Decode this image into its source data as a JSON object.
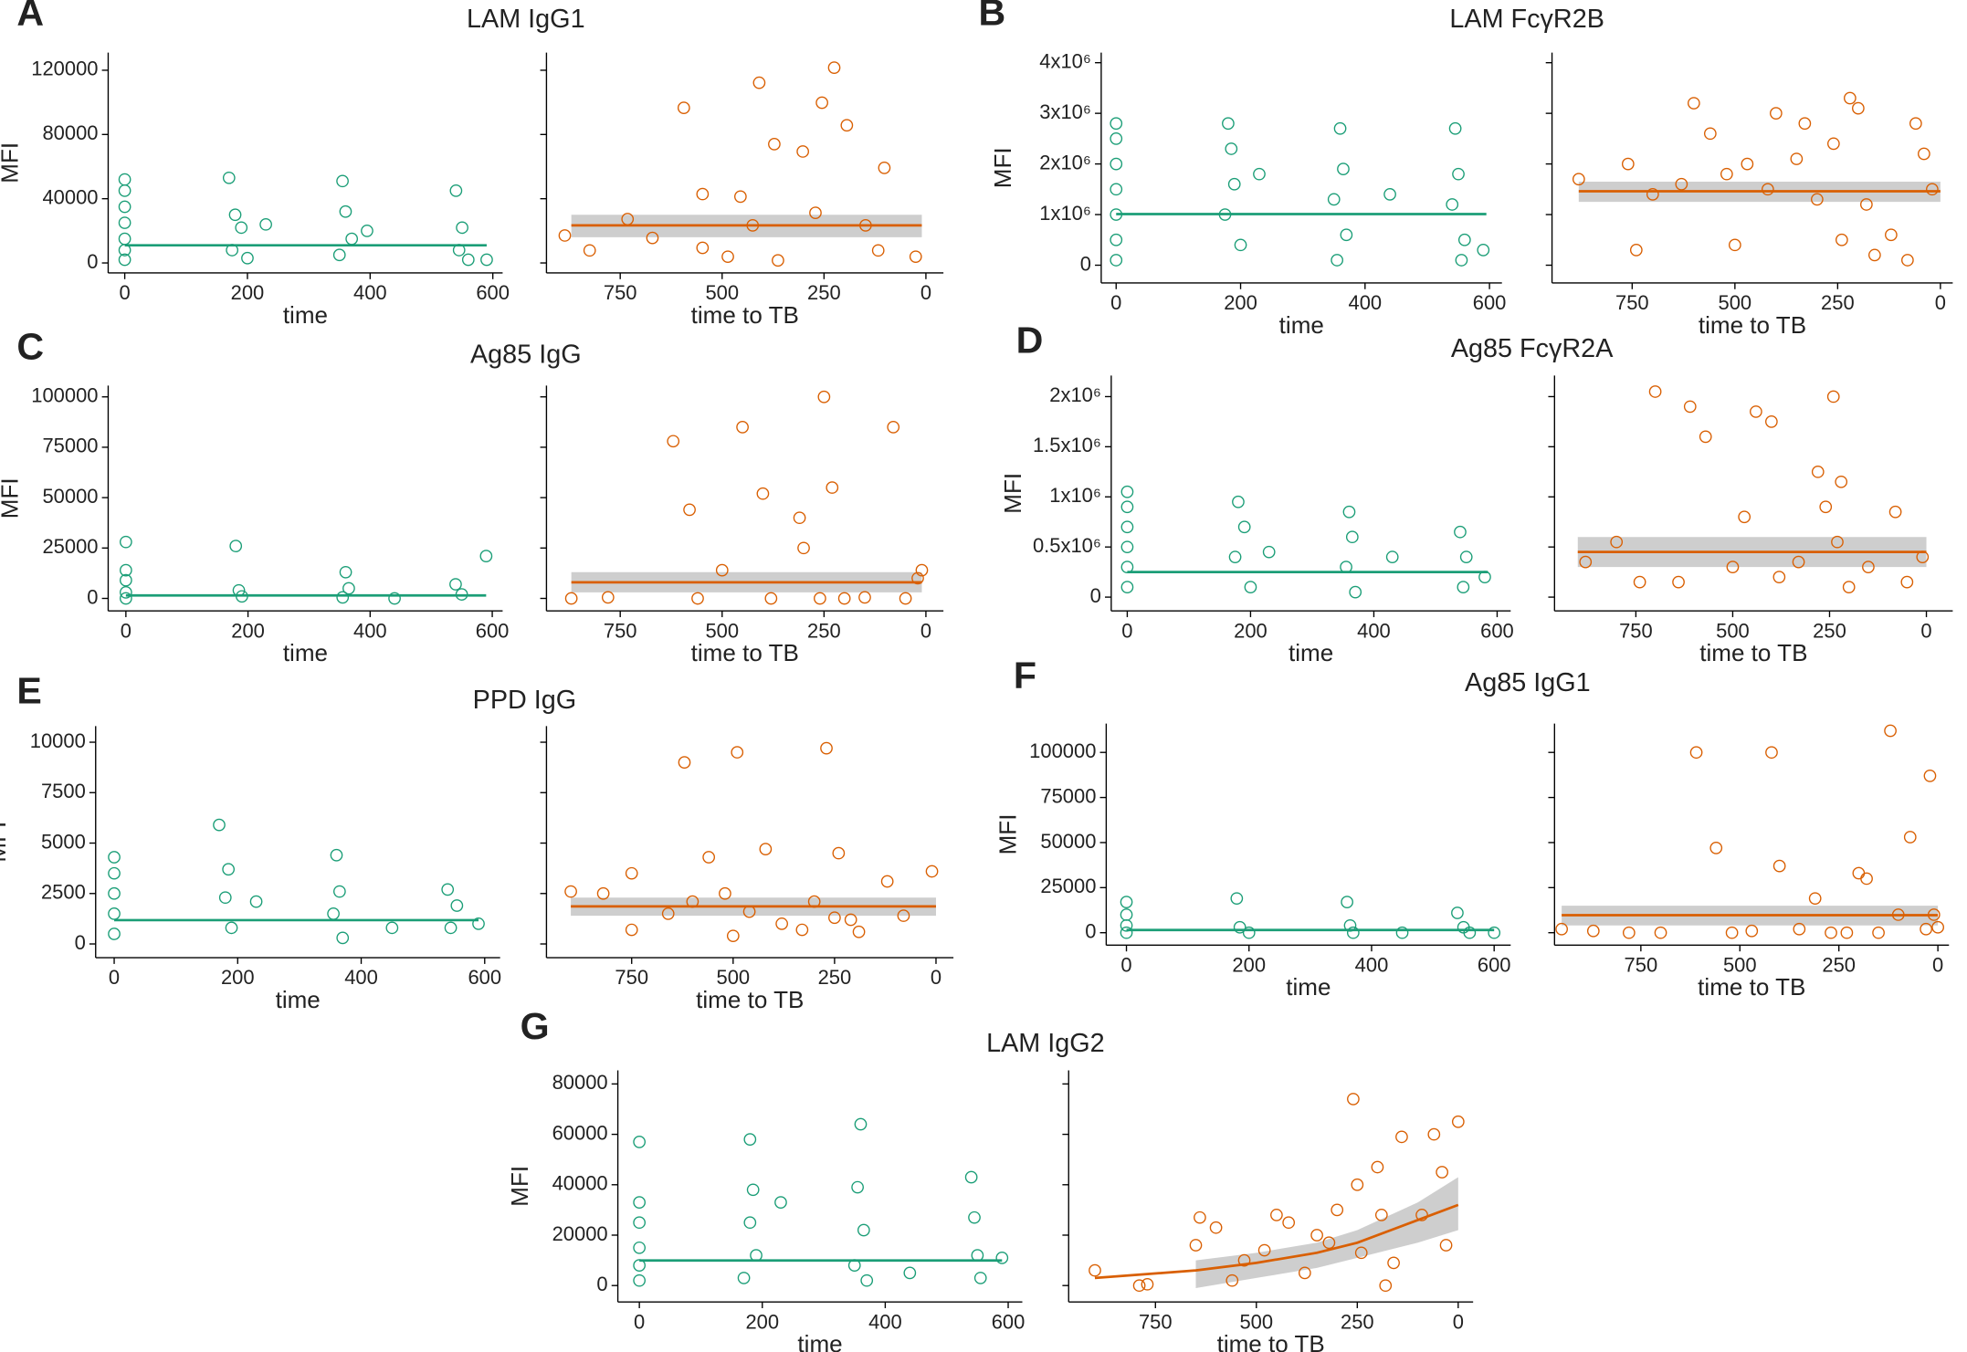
{
  "chart_data": [
    {
      "type": "scatter",
      "panel": "A",
      "title": "LAM IgG1",
      "y_label": "MFI",
      "x_label": "time",
      "color": "#1b9e77",
      "xlim": [
        -27,
        616
      ],
      "xticks": [
        0,
        200,
        400,
        600
      ],
      "ylim": [
        -6200,
        131000
      ],
      "yticks": [
        0,
        40000,
        80000,
        120000
      ],
      "x": [
        0,
        0,
        0,
        0,
        0,
        0,
        0,
        170,
        180,
        190,
        175,
        200,
        230,
        355,
        360,
        370,
        350,
        395,
        540,
        550,
        545,
        560,
        590
      ],
      "y": [
        52000,
        45000,
        35000,
        25000,
        15000,
        8000,
        2000,
        53000,
        30000,
        22000,
        8000,
        3000,
        24000,
        51000,
        32000,
        15000,
        5000,
        20000,
        45000,
        22000,
        8000,
        2000,
        2000
      ],
      "fit": {
        "x": [
          0,
          590
        ],
        "y": [
          11000,
          11000
        ]
      }
    },
    {
      "type": "scatter",
      "x_label": "time to TB",
      "color": "#d95f02",
      "xlim": [
        931,
        -43
      ],
      "xticks": [
        750,
        500,
        250,
        0
      ],
      "ylim": [
        -6200,
        131000
      ],
      "x": [
        594,
        409,
        255,
        225,
        194,
        372,
        548,
        455,
        302,
        102,
        886,
        732,
        671,
        425,
        271,
        117,
        25,
        825,
        486,
        148,
        363,
        548
      ],
      "y": [
        96600,
        112200,
        99800,
        121600,
        85700,
        74000,
        42900,
        41300,
        69400,
        59200,
        17100,
        27300,
        15600,
        23400,
        31200,
        7800,
        3900,
        7800,
        3900,
        23400,
        1600,
        9400
      ],
      "fit": {
        "x": [
          870,
          10
        ],
        "y": [
          23400,
          23400
        ]
      },
      "band": {
        "x": [
          870,
          10
        ],
        "lower": [
          16000,
          16000
        ],
        "upper": [
          30000,
          30000
        ]
      }
    },
    {
      "type": "scatter",
      "panel": "B",
      "title": "LAM FcγR2B",
      "y_label": "MFI",
      "x_label": "time",
      "color": "#1b9e77",
      "xlim": [
        -24,
        620
      ],
      "xticks": [
        0,
        200,
        400,
        600
      ],
      "ylim": [
        -350000,
        4200000
      ],
      "yticks": [
        0,
        {
          "value": 1000000,
          "label": "1x10⁶"
        },
        {
          "value": 2000000,
          "label": "2x10⁶"
        },
        {
          "value": 3000000,
          "label": "3x10⁶"
        },
        {
          "value": 4000000,
          "label": "4x10⁶"
        }
      ],
      "x": [
        0,
        0,
        0,
        0,
        0,
        0,
        0,
        180,
        185,
        190,
        175,
        200,
        230,
        360,
        365,
        350,
        370,
        355,
        440,
        545,
        550,
        540,
        560,
        555,
        590
      ],
      "y": [
        2800000,
        2500000,
        2000000,
        1500000,
        1000000,
        500000,
        100000,
        2800000,
        2300000,
        1600000,
        1000000,
        400000,
        1800000,
        2700000,
        1900000,
        1300000,
        600000,
        100000,
        1400000,
        2700000,
        1800000,
        1200000,
        500000,
        100000,
        300000
      ],
      "fit": {
        "x": [
          0,
          595
        ],
        "y": [
          1010000,
          1010000
        ]
      }
    },
    {
      "type": "scatter",
      "x_label": "time to TB",
      "color": "#d95f02",
      "xlim": [
        945,
        -30
      ],
      "xticks": [
        750,
        500,
        250,
        0
      ],
      "ylim": [
        -350000,
        4200000
      ],
      "x": [
        880,
        760,
        740,
        700,
        630,
        600,
        560,
        520,
        500,
        470,
        420,
        400,
        350,
        330,
        300,
        260,
        240,
        220,
        200,
        180,
        160,
        120,
        80,
        60,
        40,
        20
      ],
      "y": [
        1700000,
        2000000,
        300000,
        1400000,
        1600000,
        3200000,
        2600000,
        1800000,
        400000,
        2000000,
        1500000,
        3000000,
        2100000,
        2800000,
        1300000,
        2400000,
        500000,
        3300000,
        3100000,
        1200000,
        200000,
        600000,
        100000,
        2800000,
        2200000,
        1500000
      ],
      "fit": {
        "x": [
          880,
          0
        ],
        "y": [
          1460000,
          1460000
        ]
      },
      "band": {
        "x": [
          880,
          0
        ],
        "lower": [
          1250000,
          1250000
        ],
        "upper": [
          1650000,
          1650000
        ]
      }
    },
    {
      "type": "scatter",
      "panel": "C",
      "title": "Ag85 IgG",
      "y_label": "MFI",
      "x_label": "time",
      "color": "#1b9e77",
      "xlim": [
        -29,
        617
      ],
      "xticks": [
        0,
        200,
        400,
        600
      ],
      "ylim": [
        -6200,
        105600
      ],
      "yticks": [
        0,
        25000,
        50000,
        75000,
        100000
      ],
      "x": [
        0,
        0,
        0,
        0,
        0,
        180,
        185,
        190,
        360,
        365,
        355,
        440,
        540,
        550,
        590
      ],
      "y": [
        28000,
        14000,
        9000,
        3000,
        0,
        26000,
        4000,
        1000,
        13000,
        5000,
        500,
        0,
        7000,
        2000,
        21000
      ],
      "fit": {
        "x": [
          0,
          590
        ],
        "y": [
          1500,
          1500
        ]
      }
    },
    {
      "type": "scatter",
      "x_label": "time to TB",
      "color": "#d95f02",
      "xlim": [
        931,
        -43
      ],
      "xticks": [
        750,
        500,
        250,
        0
      ],
      "ylim": [
        -6200,
        105600
      ],
      "x": [
        870,
        780,
        620,
        580,
        560,
        500,
        450,
        400,
        380,
        310,
        300,
        260,
        250,
        230,
        200,
        150,
        80,
        50,
        20,
        10
      ],
      "y": [
        0,
        500,
        78000,
        44000,
        0,
        14000,
        85000,
        52000,
        0,
        40000,
        25000,
        0,
        100000,
        55000,
        0,
        500,
        85000,
        0,
        10000,
        14000
      ],
      "fit": {
        "x": [
          870,
          10
        ],
        "y": [
          8000,
          8000
        ]
      },
      "band": {
        "x": [
          870,
          10
        ],
        "lower": [
          3000,
          3000
        ],
        "upper": [
          13000,
          13000
        ]
      }
    },
    {
      "type": "scatter",
      "panel": "D",
      "title": "Ag85 FcγR2A",
      "y_label": "MFI",
      "x_label": "time",
      "color": "#1b9e77",
      "xlim": [
        -26,
        622
      ],
      "xticks": [
        0,
        200,
        400,
        600
      ],
      "ylim": [
        -137500,
        2210000
      ],
      "yticks": [
        0,
        {
          "value": 500000,
          "label": "0.5x10⁶"
        },
        {
          "value": 1000000,
          "label": "1x10⁶"
        },
        {
          "value": 1500000,
          "label": "1.5x10⁶"
        },
        {
          "value": 2000000,
          "label": "2x10⁶"
        }
      ],
      "x": [
        0,
        0,
        0,
        0,
        0,
        0,
        180,
        190,
        175,
        200,
        230,
        360,
        365,
        355,
        370,
        430,
        540,
        550,
        545,
        580
      ],
      "y": [
        1050000,
        900000,
        700000,
        500000,
        300000,
        100000,
        950000,
        700000,
        400000,
        100000,
        450000,
        850000,
        600000,
        300000,
        50000,
        400000,
        650000,
        400000,
        100000,
        200000
      ],
      "fit": {
        "x": [
          0,
          585
        ],
        "y": [
          250000,
          250000
        ]
      }
    },
    {
      "type": "scatter",
      "x_label": "time to TB",
      "color": "#d95f02",
      "xlim": [
        960,
        -68
      ],
      "xticks": [
        750,
        500,
        250,
        0
      ],
      "ylim": [
        -137500,
        2210000
      ],
      "x": [
        880,
        800,
        740,
        700,
        640,
        610,
        570,
        500,
        470,
        440,
        400,
        380,
        330,
        280,
        260,
        240,
        230,
        220,
        200,
        150,
        80,
        50,
        10
      ],
      "y": [
        350000,
        550000,
        150000,
        2050000,
        150000,
        1900000,
        1600000,
        300000,
        800000,
        1850000,
        1750000,
        200000,
        350000,
        1250000,
        900000,
        2000000,
        550000,
        1150000,
        100000,
        300000,
        850000,
        150000,
        400000
      ],
      "fit": {
        "x": [
          900,
          0
        ],
        "y": [
          450000,
          450000
        ]
      },
      "band": {
        "x": [
          900,
          0
        ],
        "lower": [
          300000,
          300000
        ],
        "upper": [
          600000,
          600000
        ]
      }
    },
    {
      "type": "scatter",
      "panel": "E",
      "title": "PPD IgG",
      "y_label": "MFI",
      "x_label": "time",
      "color": "#1b9e77",
      "xlim": [
        -30,
        625
      ],
      "xticks": [
        0,
        200,
        400,
        600
      ],
      "ylim": [
        -680,
        10800
      ],
      "yticks": [
        0,
        2500,
        5000,
        7500,
        10000
      ],
      "x": [
        0,
        0,
        0,
        0,
        0,
        170,
        185,
        180,
        190,
        230,
        360,
        365,
        355,
        370,
        450,
        540,
        555,
        545,
        590
      ],
      "y": [
        4300,
        3500,
        2500,
        1500,
        500,
        5900,
        3700,
        2300,
        800,
        2100,
        4400,
        2600,
        1500,
        300,
        800,
        2700,
        1900,
        800,
        1000
      ],
      "fit": {
        "x": [
          0,
          590
        ],
        "y": [
          1180,
          1180
        ]
      }
    },
    {
      "type": "scatter",
      "x_label": "time to TB",
      "color": "#d95f02",
      "xlim": [
        960,
        -43
      ],
      "xticks": [
        750,
        500,
        250,
        0
      ],
      "ylim": [
        -680,
        10800
      ],
      "x": [
        900,
        820,
        750,
        750,
        660,
        620,
        600,
        560,
        520,
        500,
        490,
        460,
        420,
        380,
        330,
        300,
        270,
        250,
        240,
        210,
        190,
        120,
        80,
        10
      ],
      "y": [
        2600,
        2500,
        3500,
        700,
        1500,
        9000,
        2100,
        4300,
        2500,
        400,
        9500,
        1600,
        4700,
        1000,
        700,
        2100,
        9700,
        1300,
        4500,
        1200,
        600,
        3100,
        1400,
        3600
      ],
      "fit": {
        "x": [
          900,
          0
        ],
        "y": [
          1860,
          1860
        ]
      },
      "band": {
        "x": [
          900,
          0
        ],
        "lower": [
          1400,
          1400
        ],
        "upper": [
          2300,
          2300
        ]
      }
    },
    {
      "type": "scatter",
      "panel": "F",
      "title": "Ag85 IgG1",
      "y_label": "MFI",
      "x_label": "time",
      "color": "#1b9e77",
      "xlim": [
        -33,
        627
      ],
      "xticks": [
        0,
        200,
        400,
        600
      ],
      "ylim": [
        -6900,
        116000
      ],
      "yticks": [
        0,
        25000,
        50000,
        75000,
        100000
      ],
      "x": [
        0,
        0,
        0,
        0,
        180,
        185,
        200,
        360,
        365,
        370,
        450,
        540,
        550,
        560,
        600
      ],
      "y": [
        17000,
        10000,
        4000,
        0,
        19000,
        3000,
        0,
        17000,
        4000,
        0,
        0,
        11000,
        3000,
        0,
        0
      ],
      "fit": {
        "x": [
          0,
          600
        ],
        "y": [
          1500,
          1500
        ]
      }
    },
    {
      "type": "scatter",
      "x_label": "time to TB",
      "color": "#d95f02",
      "xlim": [
        968,
        -28
      ],
      "xticks": [
        750,
        500,
        250,
        0
      ],
      "ylim": [
        -6900,
        116000
      ],
      "x": [
        950,
        870,
        780,
        700,
        610,
        560,
        520,
        470,
        420,
        400,
        350,
        310,
        270,
        230,
        200,
        180,
        150,
        120,
        100,
        70,
        30,
        20,
        0,
        10
      ],
      "y": [
        2000,
        1000,
        0,
        0,
        100000,
        47000,
        0,
        1000,
        100000,
        37000,
        2000,
        19000,
        0,
        0,
        33000,
        30000,
        0,
        112000,
        10000,
        53000,
        2000,
        87000,
        3000,
        10000
      ],
      "fit": {
        "x": [
          950,
          0
        ],
        "y": [
          9700,
          9700
        ]
      },
      "band": {
        "x": [
          950,
          0
        ],
        "lower": [
          4000,
          4000
        ],
        "upper": [
          15000,
          15000
        ]
      }
    },
    {
      "type": "scatter",
      "panel": "G",
      "title": "LAM IgG2",
      "y_label": "MFI",
      "x_label": "time",
      "color": "#1b9e77",
      "xlim": [
        -35,
        623
      ],
      "xticks": [
        0,
        200,
        400,
        600
      ],
      "ylim": [
        -6500,
        85400
      ],
      "yticks": [
        0,
        20000,
        40000,
        60000,
        80000
      ],
      "x": [
        0,
        0,
        0,
        0,
        0,
        0,
        180,
        185,
        180,
        190,
        170,
        230,
        360,
        355,
        365,
        350,
        370,
        440,
        540,
        545,
        550,
        555,
        590
      ],
      "y": [
        57000,
        33000,
        25000,
        15000,
        8000,
        2000,
        58000,
        38000,
        25000,
        12000,
        3000,
        33000,
        64000,
        39000,
        22000,
        8000,
        2000,
        5000,
        43000,
        27000,
        12000,
        3000,
        11000
      ],
      "fit": {
        "x": [
          0,
          590
        ],
        "y": [
          9950,
          9950
        ]
      }
    },
    {
      "type": "scatter",
      "x_label": "time to TB",
      "color": "#d95f02",
      "xlim": [
        965,
        -37
      ],
      "xticks": [
        750,
        500,
        250,
        0
      ],
      "ylim": [
        -6500,
        85400
      ],
      "x": [
        900,
        790,
        770,
        650,
        640,
        600,
        560,
        530,
        480,
        450,
        420,
        380,
        350,
        320,
        300,
        260,
        250,
        240,
        200,
        190,
        180,
        160,
        140,
        90,
        60,
        40,
        30,
        0
      ],
      "y": [
        6000,
        0,
        500,
        16000,
        27000,
        23000,
        2000,
        10000,
        14000,
        28000,
        25000,
        5000,
        20000,
        17000,
        30000,
        74000,
        40000,
        13000,
        47000,
        28000,
        0,
        9000,
        59000,
        28000,
        60000,
        45000,
        16000,
        65000
      ],
      "fit": {
        "x": [
          900,
          650,
          500,
          350,
          250,
          100,
          0
        ],
        "y": [
          3000,
          6000,
          9000,
          13000,
          17000,
          26000,
          32000
        ]
      },
      "band": {
        "x": [
          650,
          500,
          350,
          250,
          100,
          0
        ],
        "lower": [
          -1000,
          3000,
          7000,
          11000,
          17000,
          22000
        ],
        "upper": [
          10000,
          13000,
          17000,
          22000,
          33000,
          43000
        ]
      }
    }
  ]
}
